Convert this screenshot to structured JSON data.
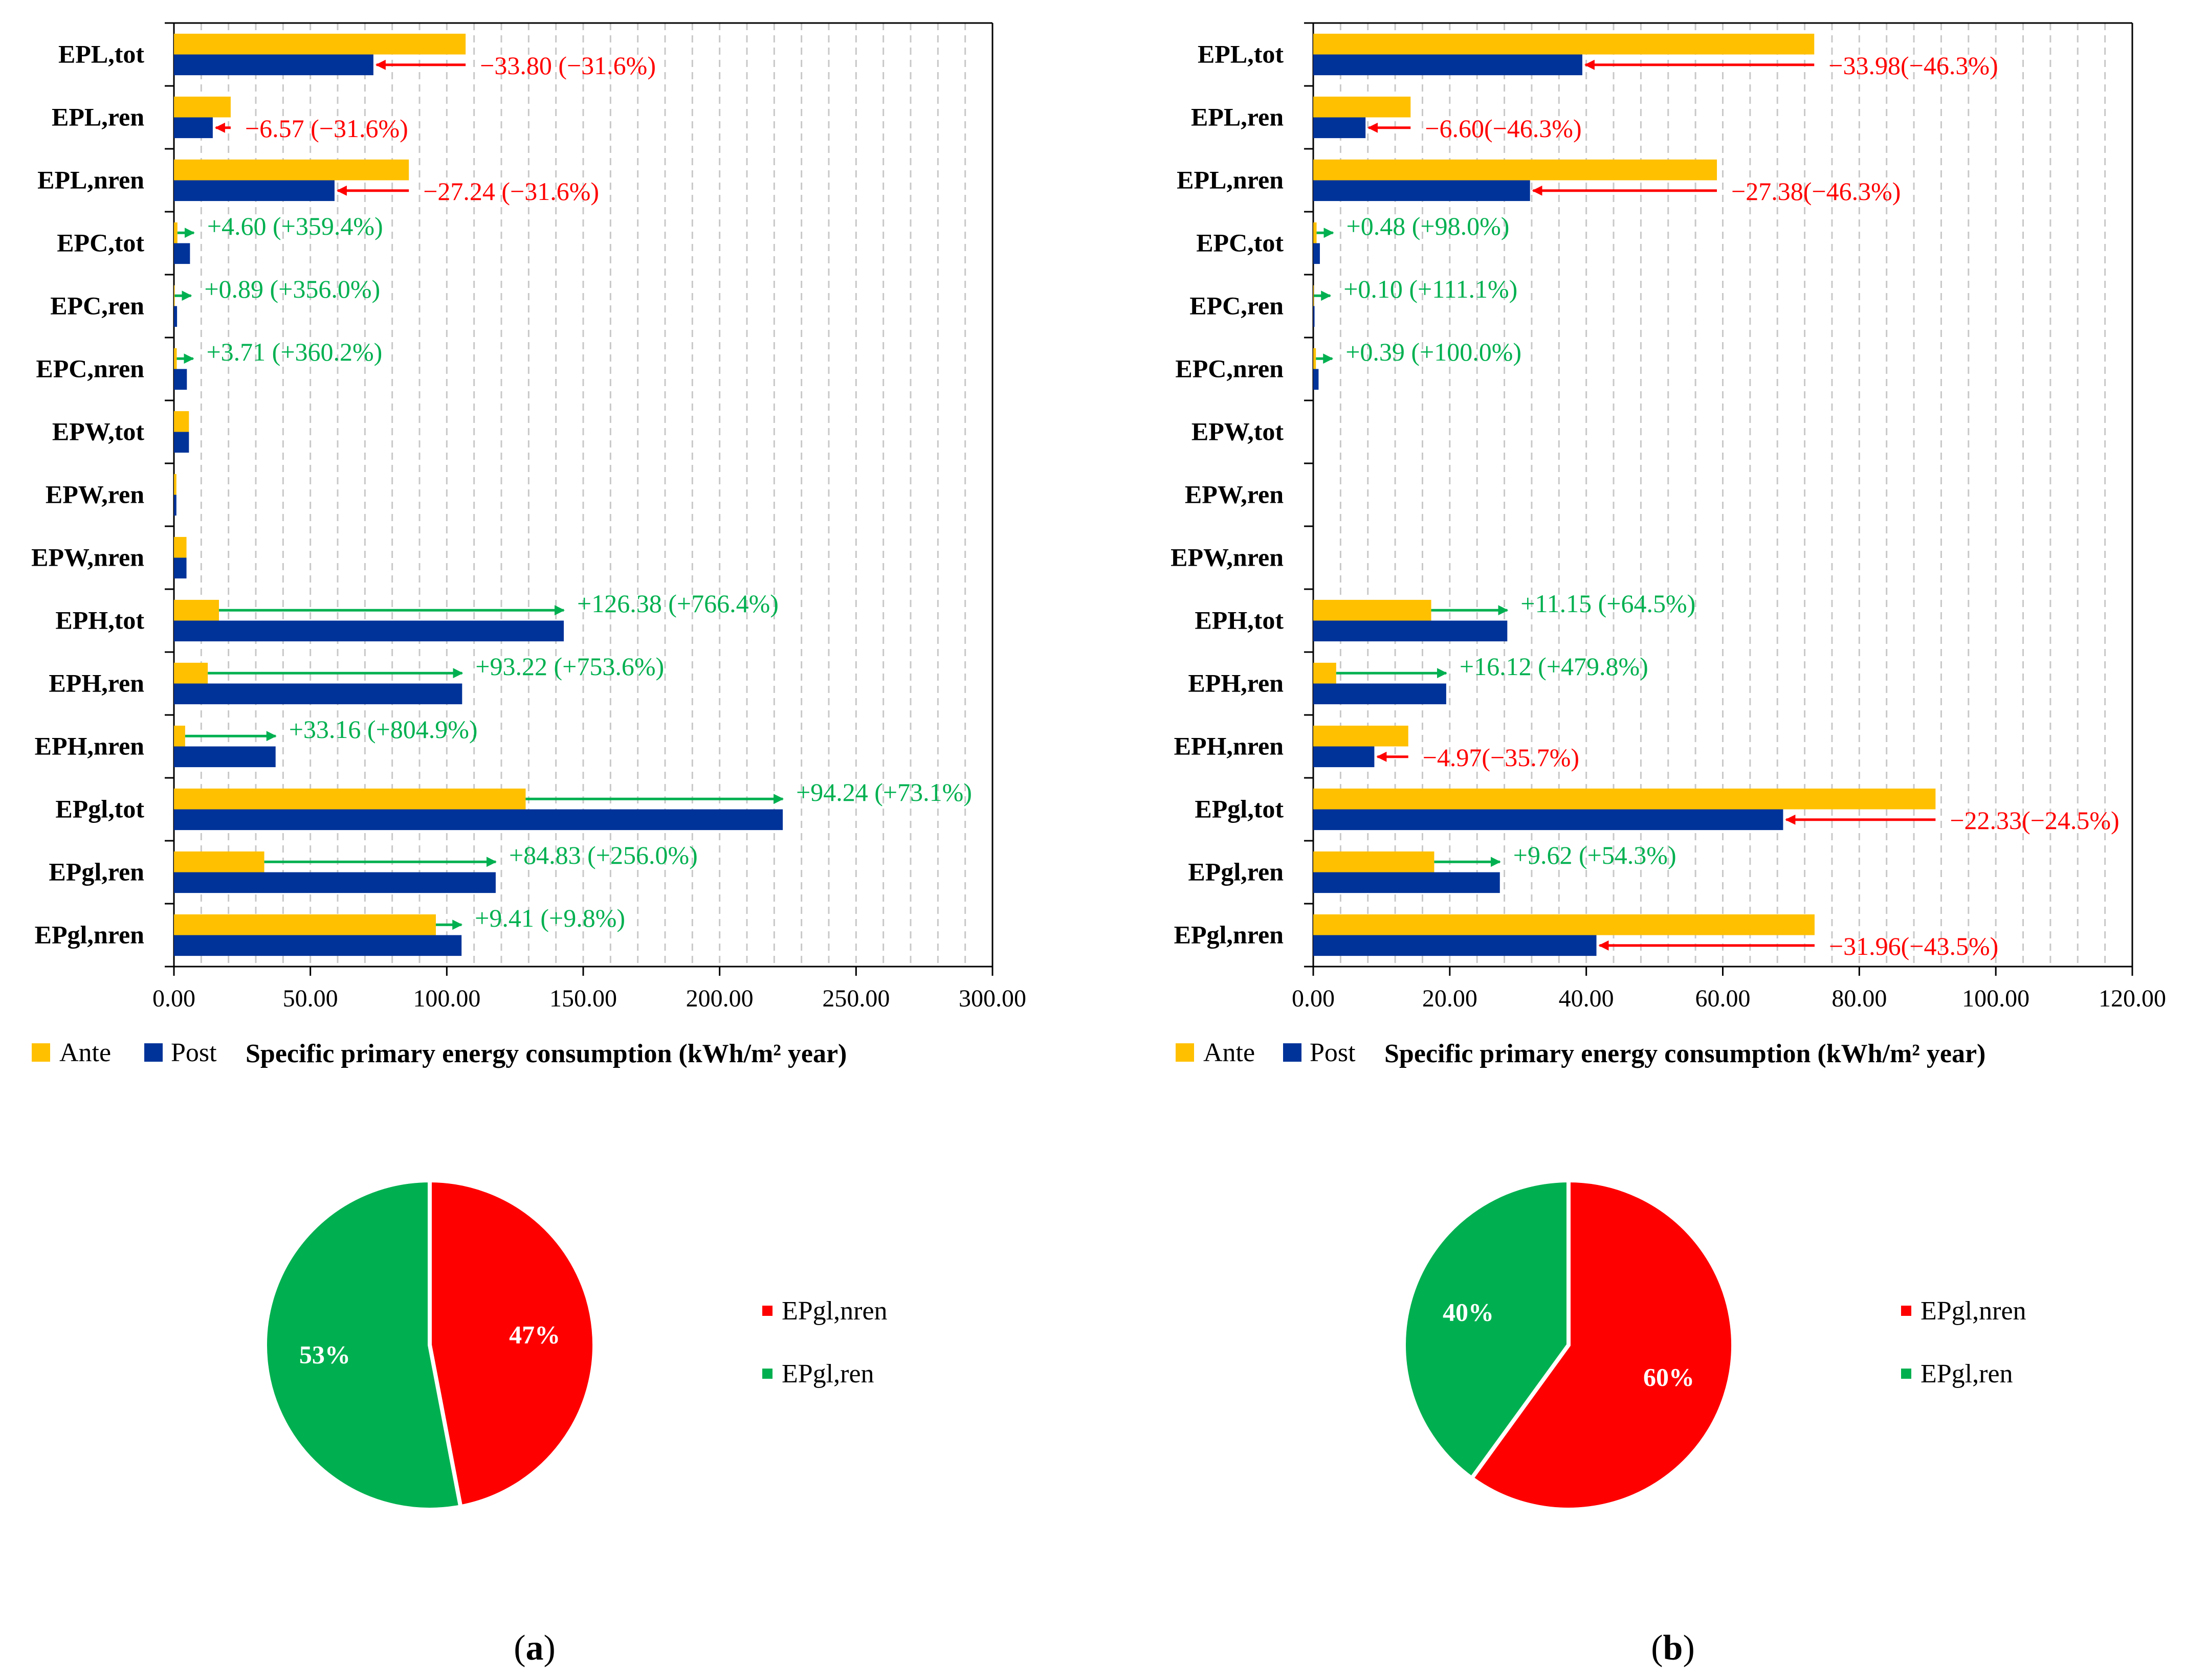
{
  "colors": {
    "ante": "#FFC000",
    "post": "#003399",
    "increase": "#00B050",
    "decrease": "#FF0000",
    "pie_nren": "#FF0000",
    "pie_ren": "#00B050",
    "grid": "#c8c8c8"
  },
  "legend": {
    "ante": "Ante",
    "post": "Post"
  },
  "chart_data": [
    {
      "type": "bar",
      "orientation": "horizontal",
      "panel": "a",
      "categories": [
        "EPL,tot",
        "EPL,ren",
        "EPL,nren",
        "EPC,tot",
        "EPC,ren",
        "EPC,nren",
        "EPW,tot",
        "EPW,ren",
        "EPW,nren",
        "EPH,tot",
        "EPH,ren",
        "EPH,nren",
        "EPgl,tot",
        "EPgl,ren",
        "EPgl,nren"
      ],
      "series": [
        {
          "name": "Ante",
          "values": [
            106.9,
            20.8,
            86.1,
            1.28,
            0.25,
            1.03,
            5.5,
            0.9,
            4.6,
            16.5,
            12.4,
            4.1,
            128.9,
            33.1,
            96.0
          ]
        },
        {
          "name": "Post",
          "values": [
            73.1,
            14.23,
            58.86,
            5.88,
            1.14,
            4.74,
            5.5,
            0.9,
            4.6,
            142.88,
            105.62,
            37.26,
            223.14,
            117.93,
            105.41
          ]
        }
      ],
      "annotations": [
        "−33.80 (−31.6%)",
        "−6.57 (−31.6%)",
        "−27.24 (−31.6%)",
        "+4.60 (+359.4%)",
        "+0.89 (+356.0%)",
        "+3.71 (+360.2%)",
        "",
        "",
        "",
        "+126.38 (+766.4%)",
        "+93.22 (+753.6%)",
        "+33.16 (+804.9%)",
        "+94.24 (+73.1%)",
        "+84.83 (+256.0%)",
        "+9.41 (+9.8%)"
      ],
      "xlim": [
        0,
        300
      ],
      "xticks": [
        "0.00",
        "50.00",
        "100.00",
        "150.00",
        "200.00",
        "250.00",
        "300.00"
      ],
      "xlabel": "Specific primary energy consumption (kWh/m² year)",
      "grid": true
    },
    {
      "type": "bar",
      "orientation": "horizontal",
      "panel": "b",
      "categories": [
        "EPL,tot",
        "EPL,ren",
        "EPL,nren",
        "EPC,tot",
        "EPC,ren",
        "EPC,nren",
        "EPW,tot",
        "EPW,ren",
        "EPW,nren",
        "EPH,tot",
        "EPH,ren",
        "EPH,nren",
        "EPgl,tot",
        "EPgl,ren",
        "EPgl,nren"
      ],
      "series": [
        {
          "name": "Ante",
          "values": [
            73.4,
            14.26,
            59.14,
            0.49,
            0.09,
            0.39,
            0,
            0,
            0,
            17.28,
            3.36,
            13.92,
            91.17,
            17.72,
            73.45
          ]
        },
        {
          "name": "Post",
          "values": [
            39.42,
            7.66,
            31.76,
            0.97,
            0.19,
            0.78,
            0,
            0,
            0,
            28.43,
            19.48,
            8.95,
            68.84,
            27.34,
            41.49
          ]
        }
      ],
      "annotations": [
        "−33.98(−46.3%)",
        "−6.60(−46.3%)",
        "−27.38(−46.3%)",
        "+0.48 (+98.0%)",
        "+0.10 (+111.1%)",
        "+0.39 (+100.0%)",
        "",
        "",
        "",
        "+11.15 (+64.5%)",
        "+16.12 (+479.8%)",
        "−4.97(−35.7%)",
        "−22.33(−24.5%)",
        "+9.62 (+54.3%)",
        "−31.96(−43.5%)"
      ],
      "xlim": [
        0,
        120
      ],
      "xticks": [
        "0.00",
        "20.00",
        "40.00",
        "60.00",
        "80.00",
        "100.00",
        "120.00"
      ],
      "xlabel": "Specific primary energy consumption (kWh/m² year)",
      "grid": true
    },
    {
      "type": "pie",
      "panel": "a",
      "labels": [
        "EPgl,nren",
        "EPgl,ren"
      ],
      "values": [
        47,
        53
      ],
      "value_labels": [
        "47%",
        "53%"
      ]
    },
    {
      "type": "pie",
      "panel": "b",
      "labels": [
        "EPgl,nren",
        "EPgl,ren"
      ],
      "values": [
        60,
        40
      ],
      "value_labels": [
        "60%",
        "40%"
      ]
    }
  ],
  "panel_tags": [
    "a",
    "b"
  ]
}
